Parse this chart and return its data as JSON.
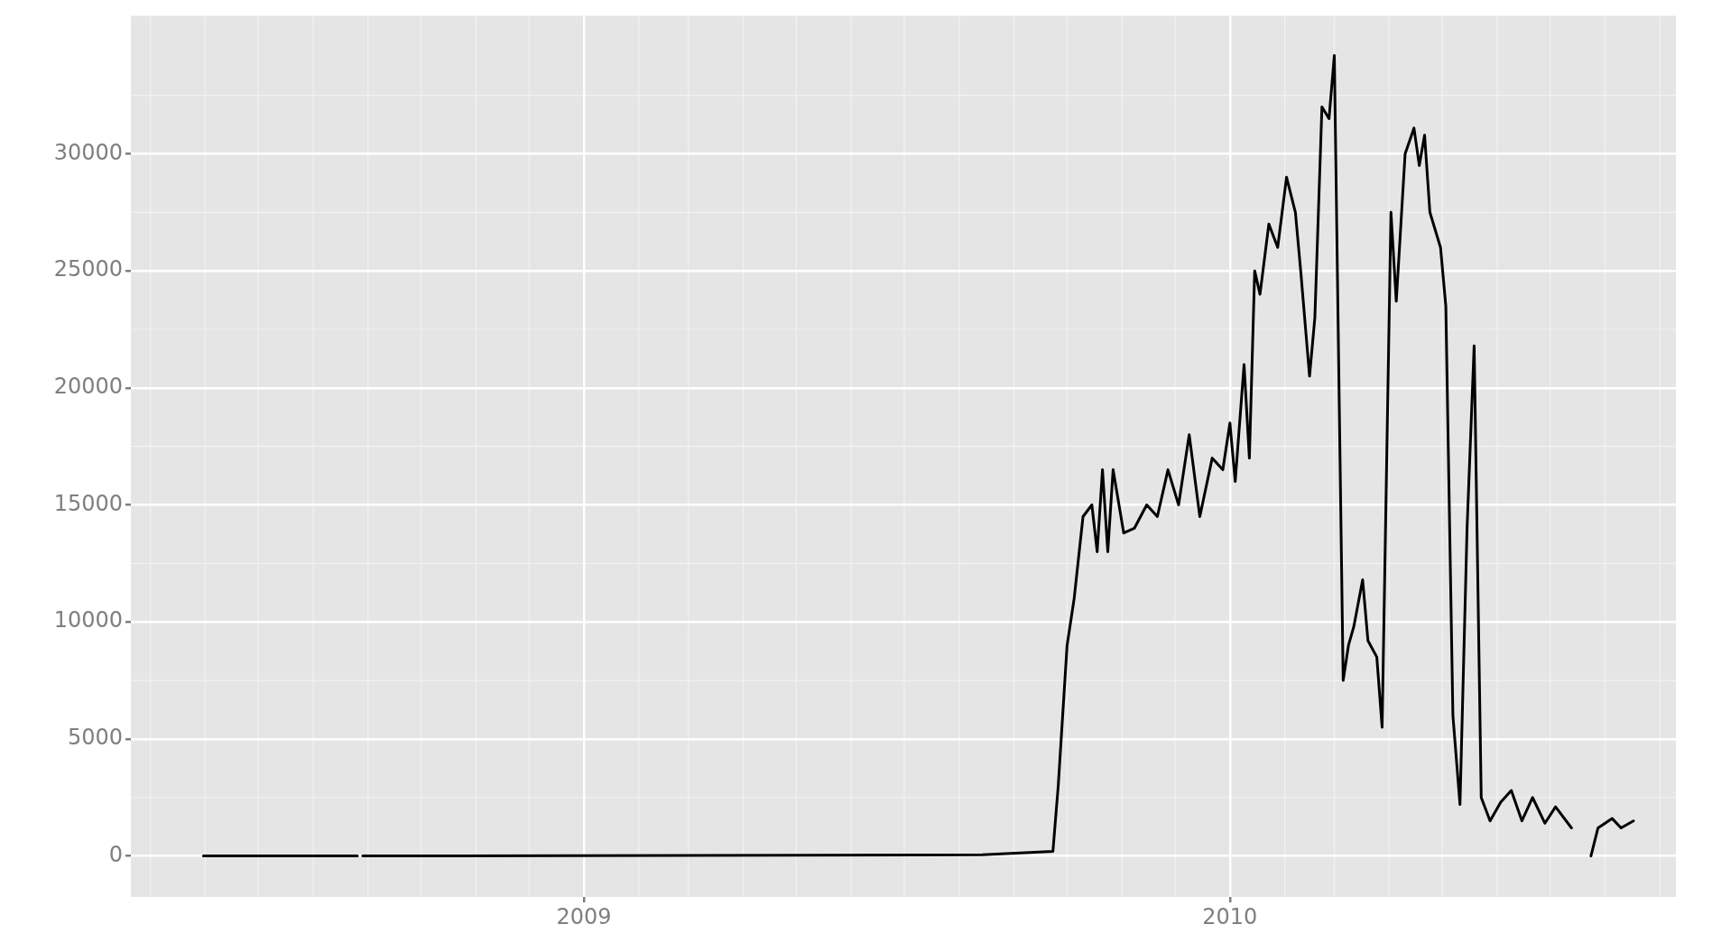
{
  "chart_data": {
    "type": "line",
    "x": [
      "2008-05-31",
      "2008-08-26",
      "2008-08-27",
      "2008-08-29",
      "2009-08-14",
      "2009-09-23",
      "2009-09-26",
      "2009-10-01",
      "2009-10-05",
      "2009-10-10",
      "2009-10-15",
      "2009-10-18",
      "2009-10-21",
      "2009-10-24",
      "2009-10-27",
      "2009-11-02",
      "2009-11-08",
      "2009-11-15",
      "2009-11-21",
      "2009-11-27",
      "2009-12-03",
      "2009-12-09",
      "2009-12-15",
      "2009-12-22",
      "2009-12-28",
      "2010-01-01",
      "2010-01-04",
      "2010-01-09",
      "2010-01-12",
      "2010-01-15",
      "2010-01-18",
      "2010-01-23",
      "2010-01-28",
      "2010-02-02",
      "2010-02-07",
      "2010-02-10",
      "2010-02-15",
      "2010-02-18",
      "2010-02-22",
      "2010-02-26",
      "2010-03-01",
      "2010-03-06",
      "2010-03-09",
      "2010-03-12",
      "2010-03-17",
      "2010-03-20",
      "2010-03-25",
      "2010-03-28",
      "2010-04-02",
      "2010-04-05",
      "2010-04-10",
      "2010-04-15",
      "2010-04-18",
      "2010-04-21",
      "2010-04-24",
      "2010-04-30",
      "2010-05-03",
      "2010-05-07",
      "2010-05-11",
      "2010-05-15",
      "2010-05-19",
      "2010-05-23",
      "2010-05-28",
      "2010-06-03",
      "2010-06-09",
      "2010-06-15",
      "2010-06-21",
      "2010-06-28",
      "2010-07-04",
      "2010-07-13",
      "2010-07-18",
      "2010-07-24",
      "2010-07-28",
      "2010-08-05",
      "2010-08-10",
      "2010-08-17"
    ],
    "series": [
      {
        "color": "#000000",
        "values": [
          0,
          0,
          null,
          0,
          50,
          200,
          3000,
          9000,
          11000,
          14500,
          15000,
          13000,
          16500,
          13000,
          16500,
          13800,
          14000,
          15000,
          14500,
          16500,
          15000,
          18000,
          14500,
          17000,
          16500,
          18500,
          16000,
          21000,
          17000,
          25000,
          24000,
          27000,
          26000,
          29000,
          27500,
          25000,
          20500,
          23000,
          32000,
          31500,
          34200,
          7500,
          9000,
          9800,
          11800,
          9200,
          8500,
          5500,
          27500,
          23700,
          30000,
          31100,
          29500,
          30800,
          27500,
          26000,
          23500,
          6000,
          2200,
          14000,
          21800,
          2500,
          1500,
          2300,
          2800,
          1500,
          2500,
          1400,
          2100,
          1200,
          null,
          0,
          1200,
          1600,
          1200,
          1500
        ]
      }
    ],
    "xlim": [
      "2008-04-20",
      "2010-09-10"
    ],
    "xticks": [
      "2009",
      "2010"
    ],
    "ylim": [
      -1750,
      35900
    ],
    "yticks": [
      0,
      5000,
      10000,
      15000,
      20000,
      25000,
      30000
    ],
    "grid": true,
    "legend": false,
    "marker": "none",
    "line_style": "solid"
  }
}
